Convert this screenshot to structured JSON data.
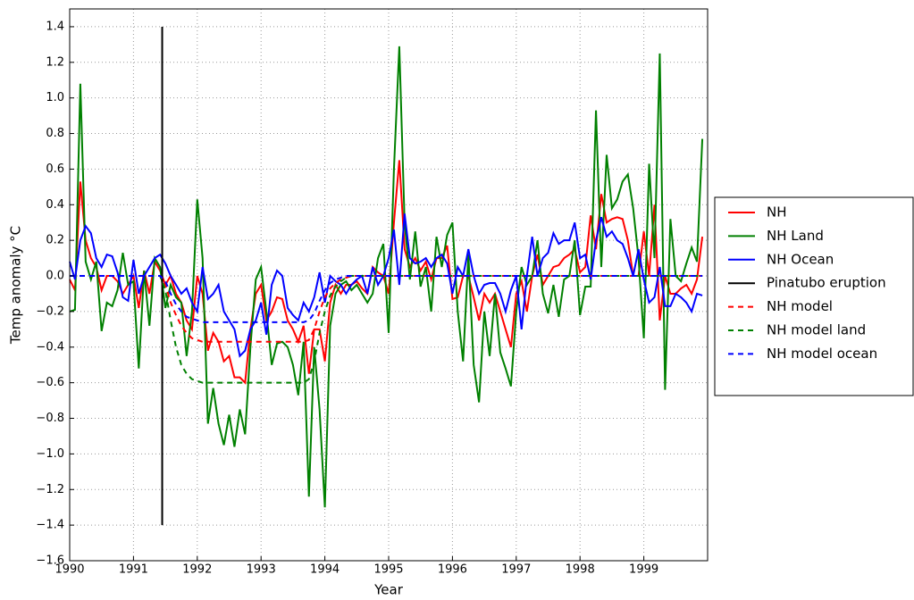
{
  "chart_data": {
    "type": "line",
    "x_label": "Year",
    "y_label": "Temp anomaly °C",
    "xlim": [
      1990,
      2000
    ],
    "ylim": [
      -1.6,
      1.5
    ],
    "xticks": [
      1990,
      1991,
      1992,
      1993,
      1994,
      1995,
      1996,
      1997,
      1998,
      1999
    ],
    "yticks": [
      {
        "value": -1.6,
        "label": "−1.6"
      },
      {
        "value": -1.4,
        "label": "−1.4"
      },
      {
        "value": -1.2,
        "label": "−1.2"
      },
      {
        "value": -1.0,
        "label": "−1.0"
      },
      {
        "value": -0.8,
        "label": "−0.8"
      },
      {
        "value": -0.6,
        "label": "−0.6"
      },
      {
        "value": -0.4,
        "label": "−0.4"
      },
      {
        "value": -0.2,
        "label": "−0.2"
      },
      {
        "value": 0,
        "label": "0.0"
      },
      0.2,
      0.4,
      0.6,
      0.8,
      {
        "value": 1.0,
        "label": "1.0"
      },
      1.2,
      1.4
    ],
    "grid": true,
    "legend": "right",
    "x": [
      1990.0,
      1990.083,
      1990.167,
      1990.25,
      1990.333,
      1990.417,
      1990.5,
      1990.583,
      1990.667,
      1990.75,
      1990.833,
      1990.917,
      1991.0,
      1991.083,
      1991.167,
      1991.25,
      1991.333,
      1991.417,
      1991.5,
      1991.583,
      1991.667,
      1991.75,
      1991.833,
      1991.917,
      1992.0,
      1992.083,
      1992.167,
      1992.25,
      1992.333,
      1992.417,
      1992.5,
      1992.583,
      1992.667,
      1992.75,
      1992.833,
      1992.917,
      1993.0,
      1993.083,
      1993.167,
      1993.25,
      1993.333,
      1993.417,
      1993.5,
      1993.583,
      1993.667,
      1993.75,
      1993.833,
      1993.917,
      1994.0,
      1994.083,
      1994.167,
      1994.25,
      1994.333,
      1994.417,
      1994.5,
      1994.583,
      1994.667,
      1994.75,
      1994.833,
      1994.917,
      1995.0,
      1995.083,
      1995.167,
      1995.25,
      1995.333,
      1995.417,
      1995.5,
      1995.583,
      1995.667,
      1995.75,
      1995.833,
      1995.917,
      1996.0,
      1996.083,
      1996.167,
      1996.25,
      1996.333,
      1996.417,
      1996.5,
      1996.583,
      1996.667,
      1996.75,
      1996.833,
      1996.917,
      1997.0,
      1997.083,
      1997.167,
      1997.25,
      1997.333,
      1997.417,
      1997.5,
      1997.583,
      1997.667,
      1997.75,
      1997.833,
      1997.917,
      1998.0,
      1998.083,
      1998.167,
      1998.25,
      1998.333,
      1998.417,
      1998.5,
      1998.583,
      1998.667,
      1998.75,
      1998.833,
      1998.917,
      1999.0,
      1999.083,
      1999.167,
      1999.25,
      1999.333,
      1999.417,
      1999.5,
      1999.583,
      1999.667,
      1999.75,
      1999.833,
      1999.917
    ],
    "series": [
      {
        "name": "NH",
        "color": "#ff0000",
        "style": "solid",
        "values": [
          -0.02,
          -0.08,
          0.53,
          0.2,
          0.1,
          0.05,
          -0.08,
          0.0,
          0.0,
          -0.03,
          -0.1,
          -0.05,
          0.0,
          -0.18,
          0.03,
          -0.1,
          0.08,
          0.03,
          -0.05,
          0.0,
          -0.1,
          -0.15,
          -0.25,
          -0.3,
          0.0,
          -0.1,
          -0.42,
          -0.32,
          -0.37,
          -0.48,
          -0.45,
          -0.57,
          -0.57,
          -0.6,
          -0.3,
          -0.1,
          -0.05,
          -0.25,
          -0.2,
          -0.12,
          -0.13,
          -0.25,
          -0.3,
          -0.37,
          -0.28,
          -0.55,
          -0.3,
          -0.3,
          -0.48,
          -0.15,
          -0.05,
          -0.1,
          -0.05,
          -0.05,
          -0.03,
          -0.07,
          -0.1,
          0.05,
          0.02,
          0.0,
          -0.1,
          0.3,
          0.65,
          0.15,
          0.05,
          0.1,
          0.03,
          0.08,
          -0.02,
          0.1,
          0.1,
          0.17,
          -0.13,
          -0.12,
          0.0,
          0.0,
          -0.12,
          -0.25,
          -0.1,
          -0.15,
          -0.1,
          -0.2,
          -0.3,
          -0.4,
          -0.1,
          -0.03,
          -0.2,
          0.0,
          0.12,
          -0.05,
          0.0,
          0.05,
          0.06,
          0.1,
          0.12,
          0.15,
          0.02,
          0.05,
          0.34,
          0.15,
          0.46,
          0.3,
          0.32,
          0.33,
          0.32,
          0.2,
          0.0,
          0.0,
          0.25,
          0.0,
          0.4,
          -0.25,
          0.0,
          -0.1,
          -0.1,
          -0.07,
          -0.05,
          -0.1,
          -0.02,
          0.22
        ]
      },
      {
        "name": "NH Land",
        "color": "#008000",
        "style": "solid",
        "values": [
          -0.2,
          -0.19,
          1.08,
          0.08,
          -0.02,
          0.08,
          -0.31,
          -0.15,
          -0.17,
          -0.08,
          0.13,
          -0.05,
          -0.03,
          -0.52,
          0.03,
          -0.28,
          0.1,
          0.05,
          -0.18,
          -0.05,
          -0.12,
          -0.15,
          -0.45,
          -0.2,
          0.43,
          0.1,
          -0.83,
          -0.63,
          -0.83,
          -0.95,
          -0.78,
          -0.96,
          -0.75,
          -0.89,
          -0.4,
          -0.02,
          0.05,
          -0.2,
          -0.5,
          -0.38,
          -0.37,
          -0.4,
          -0.5,
          -0.67,
          -0.37,
          -1.24,
          -0.4,
          -0.75,
          -1.3,
          -0.28,
          -0.1,
          -0.05,
          -0.03,
          -0.08,
          -0.05,
          -0.1,
          -0.15,
          -0.1,
          0.1,
          0.18,
          -0.32,
          0.6,
          1.29,
          0.3,
          -0.02,
          0.25,
          -0.06,
          0.05,
          -0.2,
          0.22,
          0.05,
          0.23,
          0.3,
          -0.2,
          -0.48,
          0.12,
          -0.5,
          -0.71,
          -0.2,
          -0.45,
          -0.1,
          -0.43,
          -0.52,
          -0.62,
          -0.2,
          0.05,
          -0.05,
          0.0,
          0.2,
          -0.1,
          -0.21,
          -0.05,
          -0.23,
          -0.02,
          0.0,
          0.2,
          -0.22,
          -0.06,
          -0.06,
          0.93,
          0.05,
          0.68,
          0.38,
          0.43,
          0.53,
          0.57,
          0.38,
          0.1,
          -0.35,
          0.63,
          0.1,
          1.25,
          -0.64,
          0.32,
          0.0,
          -0.03,
          0.07,
          0.16,
          0.08,
          0.77
        ]
      },
      {
        "name": "NH Ocean",
        "color": "#0000ff",
        "style": "solid",
        "values": [
          0.08,
          -0.02,
          0.2,
          0.28,
          0.24,
          0.1,
          0.05,
          0.12,
          0.11,
          0.02,
          -0.12,
          -0.14,
          0.09,
          -0.1,
          0.0,
          0.05,
          0.1,
          0.12,
          0.07,
          0.0,
          -0.05,
          -0.1,
          -0.07,
          -0.15,
          -0.2,
          0.05,
          -0.13,
          -0.1,
          -0.05,
          -0.2,
          -0.25,
          -0.3,
          -0.45,
          -0.42,
          -0.3,
          -0.25,
          -0.15,
          -0.33,
          -0.05,
          0.03,
          0.0,
          -0.18,
          -0.22,
          -0.25,
          -0.15,
          -0.2,
          -0.12,
          0.02,
          -0.15,
          0.0,
          -0.03,
          -0.05,
          -0.1,
          -0.05,
          -0.02,
          0.0,
          -0.1,
          0.05,
          -0.05,
          0.0,
          0.1,
          0.26,
          -0.05,
          0.35,
          0.1,
          0.07,
          0.08,
          0.1,
          0.05,
          0.1,
          0.12,
          0.07,
          -0.1,
          0.05,
          0.0,
          0.15,
          0.0,
          -0.1,
          -0.05,
          -0.04,
          -0.04,
          -0.1,
          -0.2,
          -0.08,
          0.0,
          -0.3,
          0.0,
          0.22,
          0.0,
          0.1,
          0.13,
          0.24,
          0.18,
          0.2,
          0.2,
          0.3,
          0.1,
          0.12,
          -0.02,
          0.2,
          0.33,
          0.22,
          0.25,
          0.2,
          0.18,
          0.1,
          0.0,
          0.15,
          -0.02,
          -0.15,
          -0.12,
          0.05,
          -0.17,
          -0.17,
          -0.1,
          -0.12,
          -0.15,
          -0.2,
          -0.1,
          -0.11
        ]
      },
      {
        "name": "Pinatubo eruption",
        "color": "#000000",
        "style": "solid",
        "x": [
          1991.45,
          1991.45
        ],
        "values": [
          1.4,
          -1.4
        ]
      },
      {
        "name": "NH model",
        "color": "#ff0000",
        "style": "dashed",
        "values": [
          0,
          0,
          0,
          0,
          0,
          0,
          0,
          0,
          0,
          0,
          0,
          0,
          0,
          0,
          0,
          0,
          0,
          0,
          -0.05,
          -0.15,
          -0.22,
          -0.28,
          -0.32,
          -0.35,
          -0.36,
          -0.37,
          -0.37,
          -0.37,
          -0.37,
          -0.37,
          -0.37,
          -0.37,
          -0.37,
          -0.37,
          -0.37,
          -0.37,
          -0.37,
          -0.37,
          -0.37,
          -0.37,
          -0.37,
          -0.37,
          -0.37,
          -0.37,
          -0.37,
          -0.36,
          -0.3,
          -0.2,
          -0.12,
          -0.07,
          -0.04,
          -0.02,
          -0.01,
          0,
          0,
          0,
          0,
          0,
          0,
          0,
          0,
          0,
          0,
          0,
          0,
          0,
          0,
          0,
          0,
          0,
          0,
          0,
          0,
          0,
          0,
          0,
          0,
          0,
          0,
          0,
          0,
          0,
          0,
          0,
          0,
          0,
          0,
          0,
          0,
          0,
          0,
          0,
          0,
          0,
          0,
          0,
          0,
          0,
          0,
          0,
          0,
          0,
          0,
          0,
          0,
          0,
          0,
          0,
          0,
          0,
          0,
          0,
          0,
          0,
          0,
          0,
          0,
          0,
          0,
          0
        ]
      },
      {
        "name": "NH model land",
        "color": "#008000",
        "style": "dashed",
        "values": [
          0,
          0,
          0,
          0,
          0,
          0,
          0,
          0,
          0,
          0,
          0,
          0,
          0,
          0,
          0,
          0,
          0,
          0,
          -0.08,
          -0.25,
          -0.4,
          -0.5,
          -0.55,
          -0.58,
          -0.59,
          -0.6,
          -0.6,
          -0.6,
          -0.6,
          -0.6,
          -0.6,
          -0.6,
          -0.6,
          -0.6,
          -0.6,
          -0.6,
          -0.6,
          -0.6,
          -0.6,
          -0.6,
          -0.6,
          -0.6,
          -0.6,
          -0.6,
          -0.6,
          -0.58,
          -0.48,
          -0.32,
          -0.2,
          -0.11,
          -0.06,
          -0.03,
          -0.01,
          0,
          0,
          0,
          0,
          0,
          0,
          0,
          0,
          0,
          0,
          0,
          0,
          0,
          0,
          0,
          0,
          0,
          0,
          0,
          0,
          0,
          0,
          0,
          0,
          0,
          0,
          0,
          0,
          0,
          0,
          0,
          0,
          0,
          0,
          0,
          0,
          0,
          0,
          0,
          0,
          0,
          0,
          0,
          0,
          0,
          0,
          0,
          0,
          0,
          0,
          0,
          0,
          0,
          0,
          0,
          0,
          0,
          0,
          0,
          0,
          0,
          0,
          0,
          0,
          0,
          0,
          0
        ]
      },
      {
        "name": "NH model ocean",
        "color": "#0000ff",
        "style": "dashed",
        "values": [
          0,
          0,
          0,
          0,
          0,
          0,
          0,
          0,
          0,
          0,
          0,
          0,
          0,
          0,
          0,
          0,
          0,
          0,
          -0.03,
          -0.1,
          -0.16,
          -0.2,
          -0.23,
          -0.24,
          -0.25,
          -0.26,
          -0.26,
          -0.26,
          -0.26,
          -0.26,
          -0.26,
          -0.26,
          -0.26,
          -0.26,
          -0.26,
          -0.26,
          -0.26,
          -0.26,
          -0.26,
          -0.26,
          -0.26,
          -0.26,
          -0.26,
          -0.26,
          -0.26,
          -0.25,
          -0.21,
          -0.14,
          -0.08,
          -0.04,
          -0.02,
          -0.01,
          0,
          0,
          0,
          0,
          0,
          0,
          0,
          0,
          0,
          0,
          0,
          0,
          0,
          0,
          0,
          0,
          0,
          0,
          0,
          0,
          0,
          0,
          0,
          0,
          0,
          0,
          0,
          0,
          0,
          0,
          0,
          0,
          0,
          0,
          0,
          0,
          0,
          0,
          0,
          0,
          0,
          0,
          0,
          0,
          0,
          0,
          0,
          0,
          0,
          0,
          0,
          0,
          0,
          0,
          0,
          0,
          0,
          0,
          0,
          0,
          0,
          0,
          0,
          0,
          0,
          0,
          0,
          0
        ]
      }
    ]
  }
}
